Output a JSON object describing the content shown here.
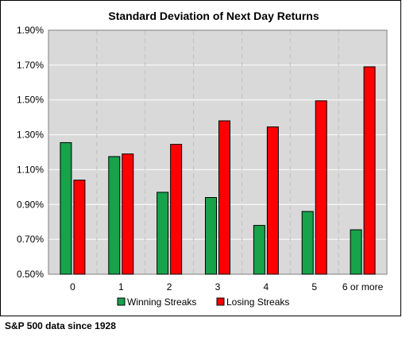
{
  "chart_data": {
    "type": "bar",
    "title": "Standard Deviation of Next Day Returns",
    "categories": [
      "0",
      "1",
      "2",
      "3",
      "4",
      "5",
      "6 or more"
    ],
    "series": [
      {
        "name": "Winning Streaks",
        "color": "#16a34a",
        "values": [
          1.255,
          1.175,
          0.97,
          0.94,
          0.78,
          0.86,
          0.755
        ]
      },
      {
        "name": "Losing Streaks",
        "color": "#ff0000",
        "values": [
          1.04,
          1.19,
          1.245,
          1.38,
          1.345,
          1.495,
          1.69
        ]
      }
    ],
    "y_ticks": [
      "0.50%",
      "0.70%",
      "0.90%",
      "1.10%",
      "1.30%",
      "1.50%",
      "1.70%",
      "1.90%"
    ],
    "ylim": [
      0.5,
      1.9
    ],
    "plot_background": "#d9d9d9",
    "grid": true,
    "legend_position": "bottom"
  },
  "source_note": "S&P 500 data since 1928"
}
